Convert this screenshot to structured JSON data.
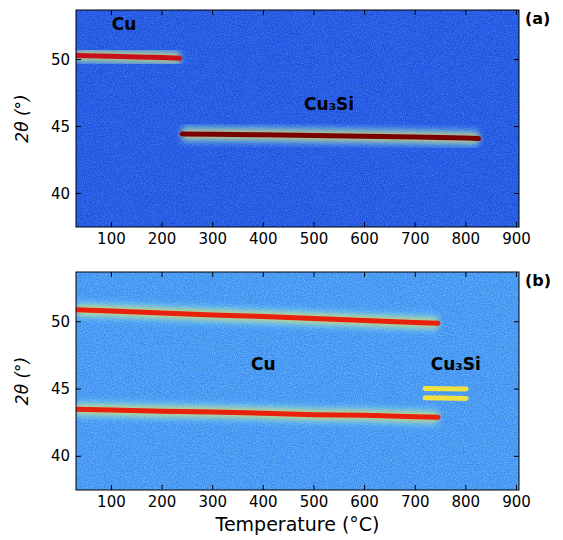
{
  "chart_data": [
    {
      "type": "line",
      "title": "(a)",
      "y_label": "2θ (°)",
      "xlim": [
        30,
        905
      ],
      "xticks": [
        100,
        200,
        300,
        400,
        500,
        600,
        700,
        800,
        900
      ],
      "ylim": [
        37.5,
        53.7
      ],
      "yticks": [
        40,
        45,
        50
      ],
      "series": [
        {
          "color": "#c8101a",
          "x": [
            30,
            100,
            150,
            200,
            235
          ],
          "values": [
            50.3,
            50.25,
            50.2,
            50.15,
            50.1
          ]
        },
        {
          "color": "#7a0000",
          "x": [
            240,
            300,
            400,
            500,
            600,
            700,
            800,
            825
          ],
          "values": [
            44.45,
            44.42,
            44.38,
            44.33,
            44.28,
            44.22,
            44.15,
            44.1
          ]
        }
      ],
      "annotations": [
        {
          "text": "Cu",
          "x": 125,
          "y": 52.2
        },
        {
          "text": "Cu₃Si",
          "x": 530,
          "y": 46.2
        }
      ]
    },
    {
      "type": "line",
      "title": "(b)",
      "x_label": "Temperature (°C)",
      "y_label": "2θ (°)",
      "xlim": [
        30,
        905
      ],
      "xticks": [
        100,
        200,
        300,
        400,
        500,
        600,
        700,
        800,
        900
      ],
      "ylim": [
        37.5,
        53.7
      ],
      "yticks": [
        40,
        45,
        50
      ],
      "series": [
        {
          "color": "#e8200c",
          "x": [
            30,
            100,
            200,
            300,
            400,
            500,
            600,
            700,
            745
          ],
          "values": [
            50.9,
            50.8,
            50.65,
            50.5,
            50.4,
            50.25,
            50.1,
            49.95,
            49.9
          ]
        },
        {
          "color": "#e8200c",
          "x": [
            30,
            100,
            200,
            300,
            400,
            500,
            600,
            700,
            745
          ],
          "values": [
            43.5,
            43.45,
            43.35,
            43.3,
            43.2,
            43.1,
            43.05,
            42.95,
            42.9
          ]
        },
        {
          "color": "#f0e040",
          "x": [
            720,
            800
          ],
          "values": [
            45.05,
            45.0
          ]
        },
        {
          "color": "#f0e040",
          "x": [
            720,
            800
          ],
          "values": [
            44.35,
            44.3
          ]
        }
      ],
      "annotations": [
        {
          "text": "Cu",
          "x": 400,
          "y": 46.4
        },
        {
          "text": "Cu₃Si",
          "x": 780,
          "y": 46.4
        }
      ]
    }
  ]
}
